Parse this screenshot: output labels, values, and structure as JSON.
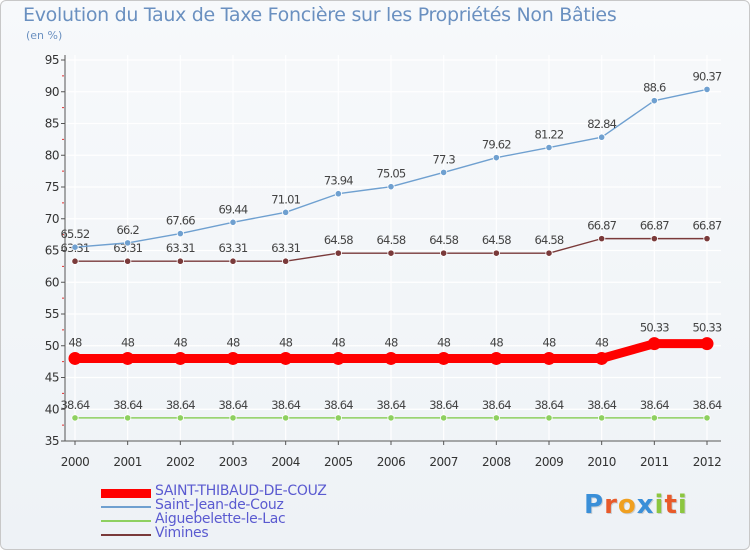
{
  "chart_data": {
    "type": "line",
    "title": "Evolution du Taux de Taxe Foncière sur les Propriétés Non Bâties",
    "subtitle": "(en %)",
    "xlabel": "",
    "ylabel": "",
    "ylim": [
      35,
      95
    ],
    "yticks": [
      35,
      40,
      45,
      50,
      55,
      60,
      65,
      70,
      75,
      80,
      85,
      90,
      95
    ],
    "categories": [
      "2000",
      "2001",
      "2002",
      "2003",
      "2004",
      "2005",
      "2006",
      "2007",
      "2008",
      "2009",
      "2010",
      "2011",
      "2012"
    ],
    "series": [
      {
        "name": "SAINT-THIBAUD-DE-COUZ",
        "color": "#ff0000",
        "values": [
          48,
          48,
          48,
          48,
          48,
          48,
          48,
          48,
          48,
          48,
          48,
          50.33,
          50.33
        ],
        "labels": [
          "48",
          "48",
          "48",
          "48",
          "48",
          "48",
          "48",
          "48",
          "48",
          "48",
          "48",
          "50.33",
          "50.33"
        ]
      },
      {
        "name": "Saint-Jean-de-Couz",
        "color": "#6fa0d0",
        "values": [
          65.52,
          66.2,
          67.66,
          69.44,
          71.01,
          73.94,
          75.05,
          77.3,
          79.62,
          81.22,
          82.84,
          88.6,
          90.37
        ],
        "labels": [
          "65.52",
          "66.2",
          "67.66",
          "69.44",
          "71.01",
          "73.94",
          "75.05",
          "77.3",
          "79.62",
          "81.22",
          "82.84",
          "88.6",
          "90.37"
        ]
      },
      {
        "name": "Aiguebelette-le-Lac",
        "color": "#8ed060",
        "values": [
          38.64,
          38.64,
          38.64,
          38.64,
          38.64,
          38.64,
          38.64,
          38.64,
          38.64,
          38.64,
          38.64,
          38.64,
          38.64
        ],
        "labels": [
          "38.64",
          "38.64",
          "38.64",
          "38.64",
          "38.64",
          "38.64",
          "38.64",
          "38.64",
          "38.64",
          "38.64",
          "38.64",
          "38.64",
          "38.64"
        ]
      },
      {
        "name": "Vimines",
        "color": "#7a3a3a",
        "values": [
          63.31,
          63.31,
          63.31,
          63.31,
          63.31,
          64.58,
          64.58,
          64.58,
          64.58,
          64.58,
          66.87,
          66.87,
          66.87
        ],
        "labels": [
          "63.31",
          "63.31",
          "63.31",
          "63.31",
          "63.31",
          "64.58",
          "64.58",
          "64.58",
          "64.58",
          "64.58",
          "66.87",
          "66.87",
          "66.87"
        ]
      }
    ],
    "grid": true,
    "legend_position": "bottom-left"
  },
  "logo": {
    "letters": [
      {
        "char": "P",
        "color": "#3a8fd8"
      },
      {
        "char": "r",
        "color": "#e85a2a"
      },
      {
        "char": "o",
        "color": "#f0a020"
      },
      {
        "char": "x",
        "color": "#3a8fd8"
      },
      {
        "char": "i",
        "color": "#8cc63f"
      },
      {
        "char": "t",
        "color": "#e85a2a"
      },
      {
        "char": "i",
        "color": "#8cc63f"
      }
    ]
  }
}
